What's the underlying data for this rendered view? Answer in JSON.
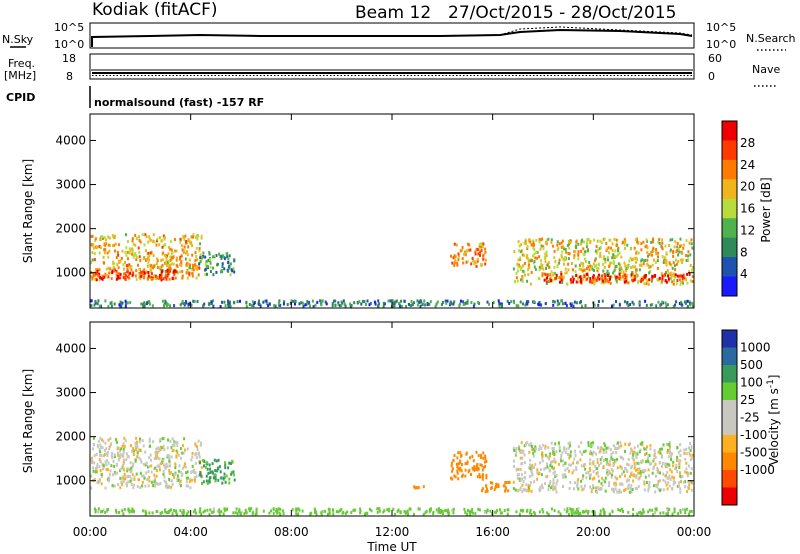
{
  "header": {
    "station": "Kodiak (fitACF)",
    "beam": "Beam 12",
    "date_range": "27/Oct/2015 - 28/Oct/2015"
  },
  "strips": {
    "nsky_label": "N.Sky",
    "nsky_ticks": [
      "10^5",
      "10^0"
    ],
    "nsearch_label": "N.Search",
    "nsearch_ticks": [
      "10^5",
      "10^0"
    ],
    "freq_label_1": "Freq.",
    "freq_label_2": "[MHz]",
    "freq_ticks": [
      "18",
      "8"
    ],
    "nave_label": "Nave",
    "nave_ticks": [
      "60",
      "0"
    ],
    "cpid_label": "CPID",
    "cpid_text": "normalsound (fast) -157 RF"
  },
  "colors": {
    "power_scale": [
      "#1a1aff",
      "#1e52b0",
      "#2e8a5a",
      "#4fb24f",
      "#b8dc3c",
      "#f0b41c",
      "#ff7a00",
      "#ff3a00",
      "#ee0000"
    ],
    "velocity_scale": [
      "#ee0000",
      "#ff4a00",
      "#ff8800",
      "#ffb020",
      "#c8c8c0",
      "#c8c8c0",
      "#66cc33",
      "#3a9a5a",
      "#2a6aa0",
      "#2030a8"
    ]
  },
  "chart_data": [
    {
      "type": "heatmap",
      "title": "Power",
      "xlabel": "Time UT",
      "ylabel": "Slant Range [km]",
      "colorbar_label": "Power [dB]",
      "colorbar_ticks": [
        "28",
        "24",
        "20",
        "16",
        "12",
        "8",
        "4"
      ],
      "clim": [
        0,
        32
      ],
      "x_ticks": [
        "00:00",
        "04:00",
        "08:00",
        "12:00",
        "16:00",
        "20:00",
        "00:00"
      ],
      "xlim_hours": [
        0,
        24
      ],
      "y_ticks": [
        "4000",
        "3000",
        "2000",
        "1000"
      ],
      "ylim": [
        200,
        4600
      ],
      "echo_regions": [
        {
          "t0": 0.0,
          "t1": 4.5,
          "r0": 800,
          "r1": 1900,
          "db": 20
        },
        {
          "t0": 0.2,
          "t1": 3.5,
          "r0": 800,
          "r1": 1100,
          "db": 28
        },
        {
          "t0": 4.3,
          "t1": 5.8,
          "r0": 900,
          "r1": 1500,
          "db": 10
        },
        {
          "t0": 14.3,
          "t1": 15.8,
          "r0": 1100,
          "r1": 1700,
          "db": 22
        },
        {
          "t0": 16.8,
          "t1": 24.0,
          "r0": 700,
          "r1": 1800,
          "db": 18
        },
        {
          "t0": 18.0,
          "t1": 24.0,
          "r0": 750,
          "r1": 1000,
          "db": 28
        },
        {
          "t0": 0.0,
          "t1": 24.0,
          "r0": 200,
          "r1": 400,
          "db": 8
        }
      ]
    },
    {
      "type": "heatmap",
      "title": "Velocity",
      "xlabel": "Time UT",
      "ylabel": "Slant Range [km]",
      "colorbar_label": "Velocity [m s^-1]",
      "colorbar_ticks": [
        "1000",
        "500",
        "100",
        "25",
        "-25",
        "-100",
        "-500",
        "-1000"
      ],
      "clim": [
        -1000,
        1000
      ],
      "x_ticks": [
        "00:00",
        "04:00",
        "08:00",
        "12:00",
        "16:00",
        "20:00",
        "00:00"
      ],
      "xlim_hours": [
        0,
        24
      ],
      "y_ticks": [
        "4000",
        "3000",
        "2000",
        "1000"
      ],
      "ylim": [
        200,
        4600
      ],
      "echo_regions": [
        {
          "t0": 0.0,
          "t1": 4.5,
          "r0": 800,
          "r1": 2000,
          "vel": 0
        },
        {
          "t0": 4.3,
          "t1": 5.8,
          "r0": 900,
          "r1": 1500,
          "vel": 120
        },
        {
          "t0": 12.8,
          "t1": 13.5,
          "r0": 800,
          "r1": 900,
          "vel": -150
        },
        {
          "t0": 14.3,
          "t1": 15.8,
          "r0": 1000,
          "r1": 1700,
          "vel": -200
        },
        {
          "t0": 15.5,
          "t1": 16.8,
          "r0": 700,
          "r1": 1000,
          "vel": -150
        },
        {
          "t0": 16.8,
          "t1": 24.0,
          "r0": 700,
          "r1": 1900,
          "vel": 0
        },
        {
          "t0": 0.0,
          "t1": 24.0,
          "r0": 200,
          "r1": 400,
          "vel": 60
        }
      ]
    }
  ]
}
